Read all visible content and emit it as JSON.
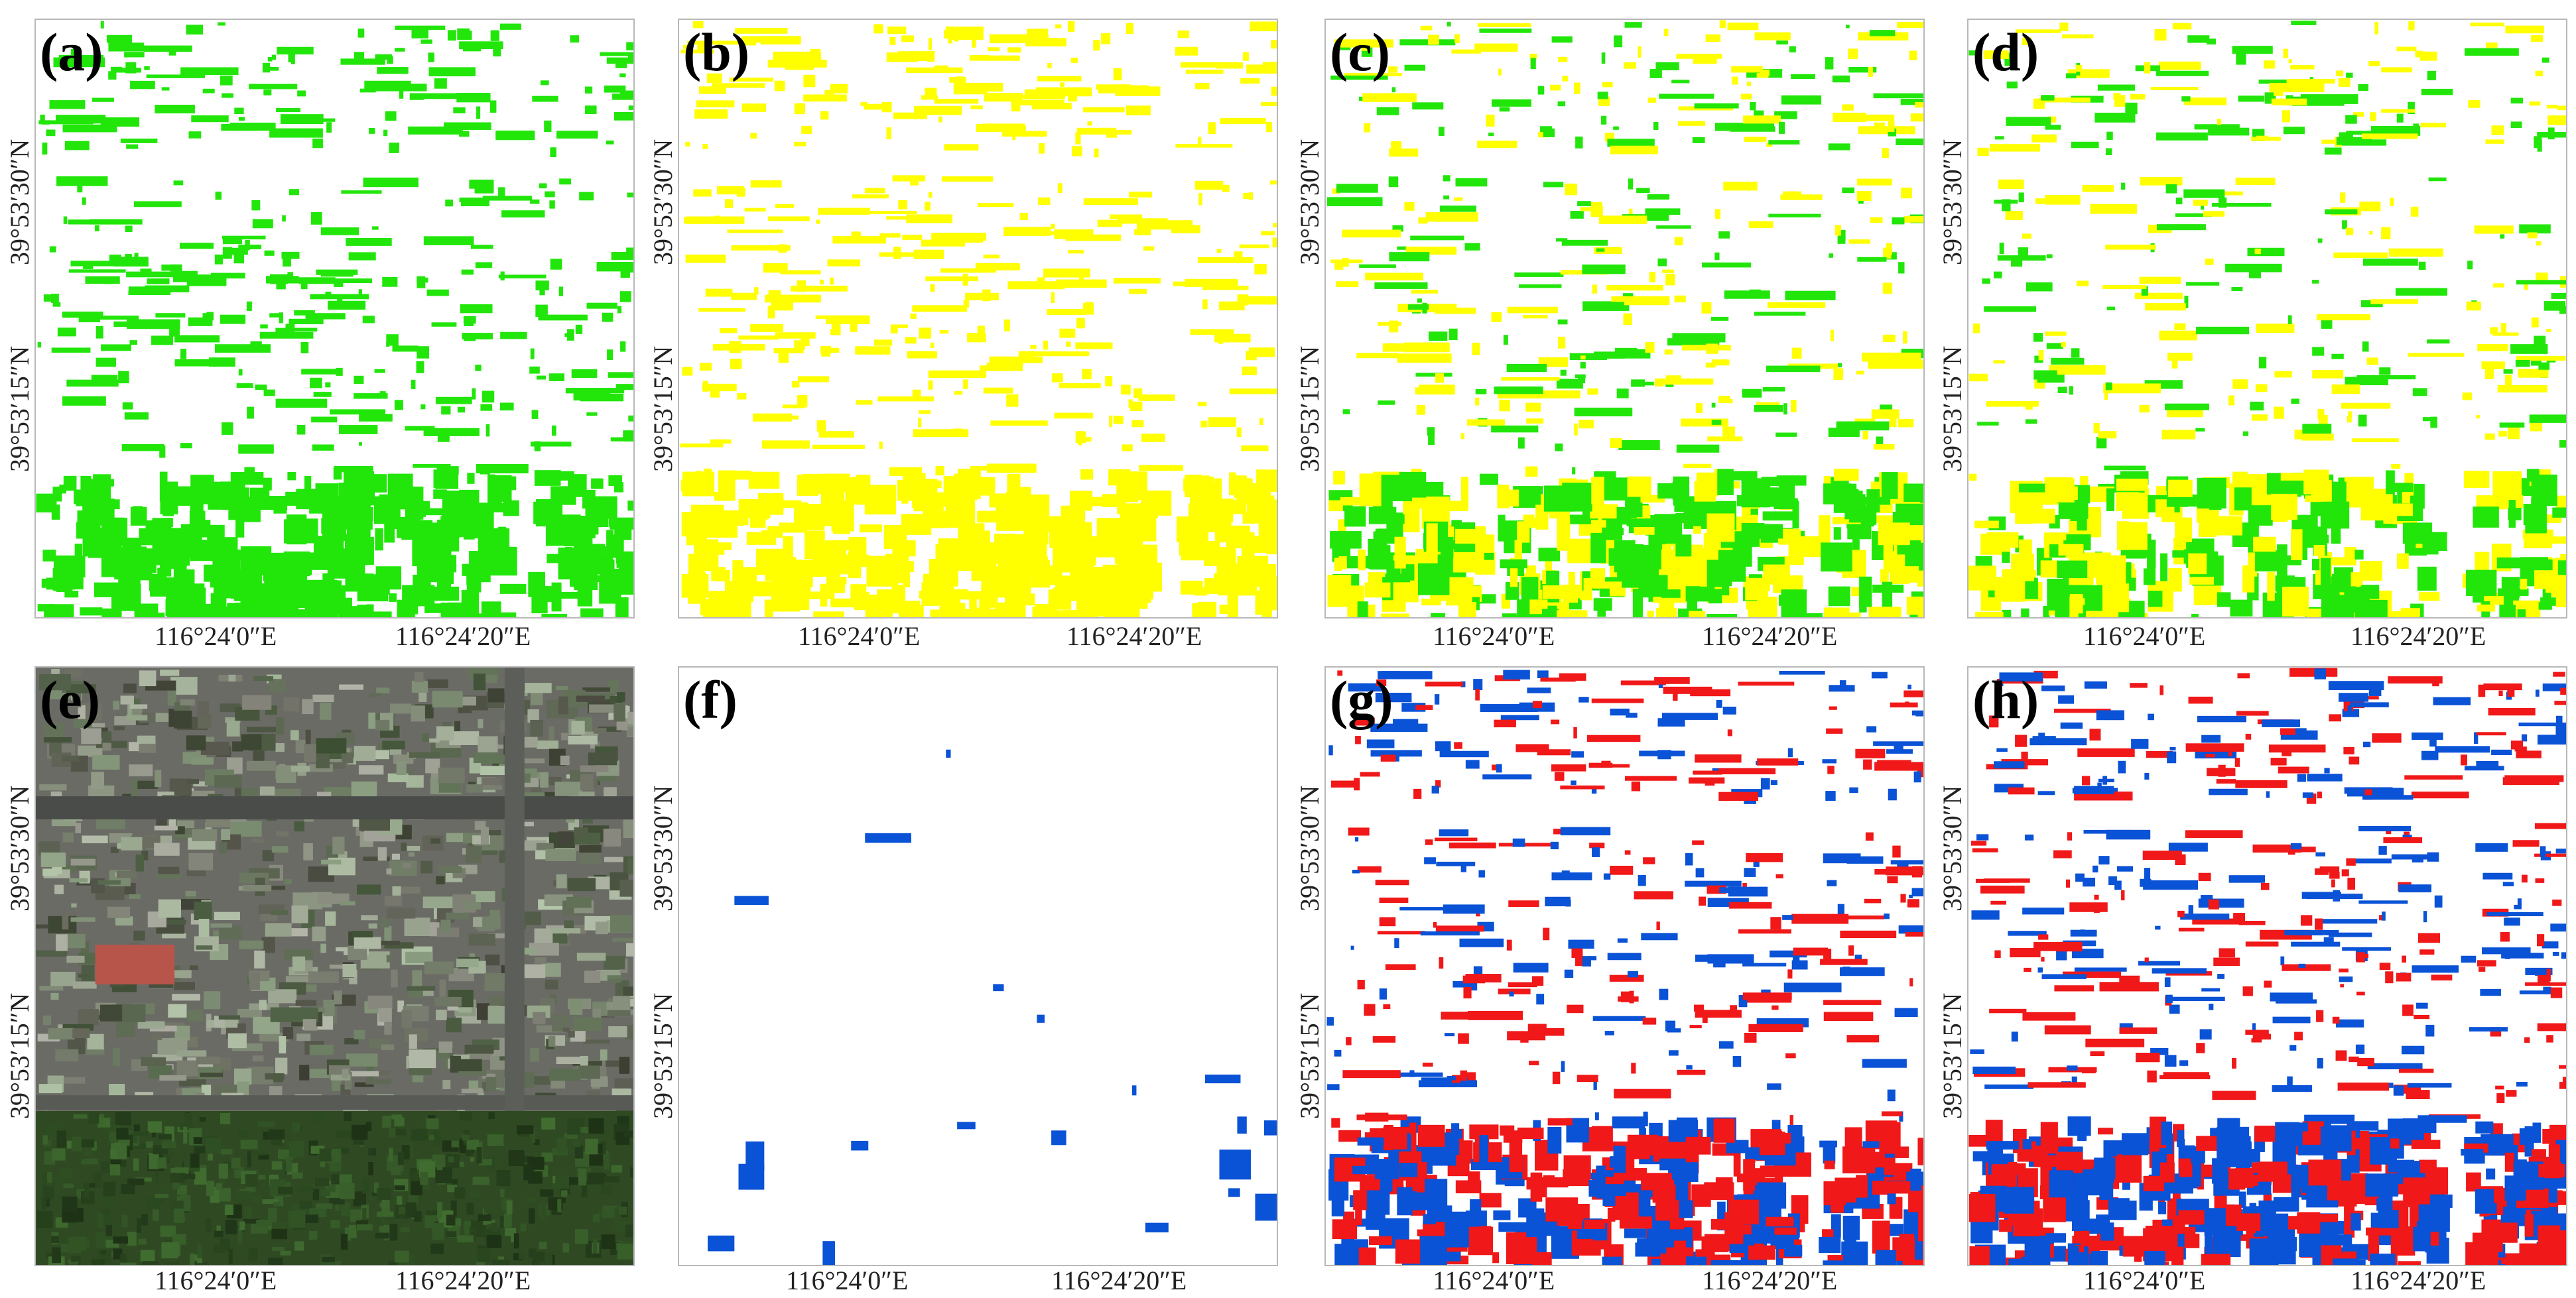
{
  "colors": {
    "green": "#22e60a",
    "yellow": "#ffff00",
    "blue": "#0a52d6",
    "red": "#f01818",
    "frame": "#b8b8b8",
    "imagery_dark": "#2b3224",
    "imagery_urban": "#6b6b66",
    "imagery_park": "#2f4a23"
  },
  "axis_ticks": {
    "lon": [
      "116°24′0″E",
      "116°24′20″E"
    ],
    "lat": [
      "39°53′30″N",
      "39°53′15″N"
    ]
  },
  "panels": [
    {
      "label": "(a)",
      "style": "green-mask",
      "colors": [
        "green"
      ]
    },
    {
      "label": "(b)",
      "style": "yellow-mask",
      "colors": [
        "yellow"
      ]
    },
    {
      "label": "(c)",
      "style": "yellow-green-mix",
      "colors": [
        "yellow",
        "green"
      ]
    },
    {
      "label": "(d)",
      "style": "yellow-sparse-green",
      "colors": [
        "yellow",
        "green"
      ]
    },
    {
      "label": "(e)",
      "style": "satellite-imagery",
      "colors": [
        "imagery_urban",
        "imagery_park"
      ]
    },
    {
      "label": "(f)",
      "style": "sparse-blue",
      "colors": [
        "blue"
      ]
    },
    {
      "label": "(g)",
      "style": "blue-red-outline",
      "colors": [
        "blue",
        "red"
      ]
    },
    {
      "label": "(h)",
      "style": "blue-red-dense",
      "colors": [
        "blue",
        "red"
      ]
    }
  ]
}
